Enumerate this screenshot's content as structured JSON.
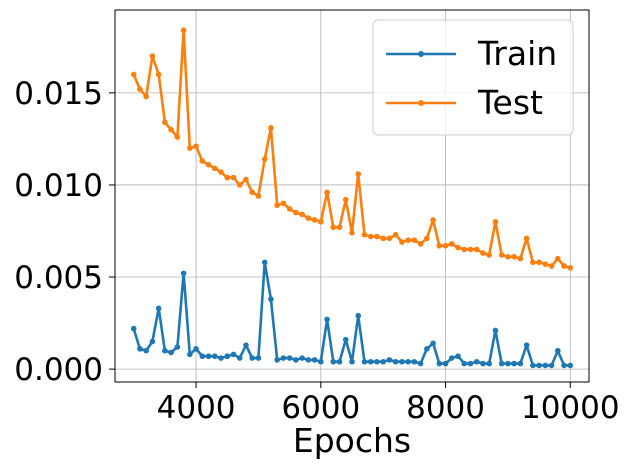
{
  "chart_data": {
    "type": "line",
    "title": "",
    "xlabel": "Epochs",
    "ylabel": "",
    "xlim": [
      2700,
      10300
    ],
    "ylim": [
      -0.0007,
      0.0195
    ],
    "xticks": [
      4000,
      6000,
      8000,
      10000
    ],
    "xtick_labels": [
      "4000",
      "6000",
      "8000",
      "10000"
    ],
    "yticks": [
      0.0,
      0.005,
      0.01,
      0.015
    ],
    "ytick_labels": [
      "0.000",
      "0.005",
      "0.010",
      "0.015"
    ],
    "grid": true,
    "legend_position": "top-right",
    "x": [
      3000,
      3100,
      3200,
      3300,
      3400,
      3500,
      3600,
      3700,
      3800,
      3900,
      4000,
      4100,
      4200,
      4300,
      4400,
      4500,
      4600,
      4700,
      4800,
      4900,
      5000,
      5100,
      5200,
      5300,
      5400,
      5500,
      5600,
      5700,
      5800,
      5900,
      6000,
      6100,
      6200,
      6300,
      6400,
      6500,
      6600,
      6700,
      6800,
      6900,
      7000,
      7100,
      7200,
      7300,
      7400,
      7500,
      7600,
      7700,
      7800,
      7900,
      8000,
      8100,
      8200,
      8300,
      8400,
      8500,
      8600,
      8700,
      8800,
      8900,
      9000,
      9100,
      9200,
      9300,
      9400,
      9500,
      9600,
      9700,
      9800,
      9900,
      10000
    ],
    "series": [
      {
        "name": "Train",
        "color": "#1f77b4",
        "values": [
          0.0022,
          0.0011,
          0.001,
          0.0015,
          0.0033,
          0.001,
          0.0009,
          0.0012,
          0.0052,
          0.0008,
          0.0011,
          0.0007,
          0.0007,
          0.0007,
          0.0006,
          0.0007,
          0.0008,
          0.0006,
          0.0013,
          0.0006,
          0.0006,
          0.0058,
          0.0038,
          0.0005,
          0.0006,
          0.0006,
          0.0005,
          0.0006,
          0.0005,
          0.0005,
          0.0004,
          0.0027,
          0.0004,
          0.0004,
          0.0016,
          0.0004,
          0.0029,
          0.0004,
          0.0004,
          0.0004,
          0.0004,
          0.0005,
          0.0004,
          0.0004,
          0.0004,
          0.0004,
          0.0003,
          0.0011,
          0.0014,
          0.0003,
          0.0003,
          0.0006,
          0.0007,
          0.0003,
          0.0003,
          0.0004,
          0.0003,
          0.0003,
          0.0021,
          0.0003,
          0.0003,
          0.0003,
          0.0003,
          0.0013,
          0.0002,
          0.0002,
          0.0002,
          0.0002,
          0.001,
          0.0002,
          0.0002
        ]
      },
      {
        "name": "Test",
        "color": "#ff7f0e",
        "values": [
          0.016,
          0.0152,
          0.0148,
          0.017,
          0.016,
          0.0134,
          0.013,
          0.0126,
          0.0184,
          0.012,
          0.0121,
          0.0113,
          0.0111,
          0.0109,
          0.0107,
          0.0104,
          0.0104,
          0.01,
          0.0103,
          0.0096,
          0.0094,
          0.0114,
          0.0131,
          0.0089,
          0.009,
          0.0087,
          0.0085,
          0.0084,
          0.0082,
          0.0081,
          0.008,
          0.0096,
          0.0077,
          0.0077,
          0.0092,
          0.0074,
          0.0106,
          0.0073,
          0.0072,
          0.0072,
          0.0071,
          0.0071,
          0.0073,
          0.0069,
          0.007,
          0.007,
          0.0068,
          0.0071,
          0.0081,
          0.0067,
          0.0067,
          0.0068,
          0.0066,
          0.0065,
          0.0065,
          0.0065,
          0.0063,
          0.0062,
          0.008,
          0.0062,
          0.0061,
          0.0061,
          0.006,
          0.0071,
          0.0058,
          0.0058,
          0.0057,
          0.0056,
          0.006,
          0.0056,
          0.0055
        ]
      }
    ]
  }
}
